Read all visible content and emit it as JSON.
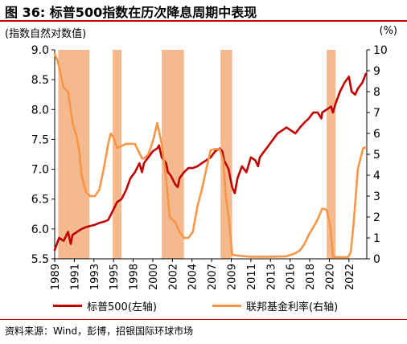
{
  "title": "图 36: 标普500指数在历次降息周期中表现",
  "left_unit": "(指数自然对数值)",
  "right_unit": "(%)",
  "source": "资料来源：Wind，彭博，招银国际环球市场",
  "legend": {
    "sp500": "标普500(左轴)",
    "fed": "联邦基金利率(右轴)"
  },
  "colors": {
    "sp500": "#c00000",
    "fed": "#f79646",
    "shade": "#f4b183",
    "title_rule": "#c00000"
  },
  "chart_data": {
    "type": "line",
    "x_range": [
      1989,
      2024
    ],
    "x_ticks": [
      "1989",
      "1991",
      "1993",
      "1995",
      "1998",
      "2000",
      "2002",
      "2004",
      "2007",
      "2009",
      "2011",
      "2013",
      "2016",
      "2018",
      "2020",
      "2022"
    ],
    "x_tick_values": [
      1989.0,
      1991.2,
      1993.4,
      1995.6,
      1997.8,
      2000.0,
      2002.2,
      2004.4,
      2006.6,
      2008.8,
      2011.0,
      2013.2,
      2015.4,
      2017.6,
      2019.8,
      2022.0
    ],
    "y_left": {
      "label": "(指数自然对数值)",
      "range": [
        5.5,
        9.0
      ],
      "ticks": [
        "5.5",
        "6.0",
        "6.5",
        "7.0",
        "7.5",
        "8.0",
        "8.5",
        "9.0"
      ],
      "tick_values": [
        5.5,
        6.0,
        6.5,
        7.0,
        7.5,
        8.0,
        8.5,
        9.0
      ]
    },
    "y_right": {
      "label": "(%)",
      "range": [
        0,
        10
      ],
      "ticks": [
        "0",
        "1",
        "2",
        "3",
        "4",
        "5",
        "6",
        "7",
        "8",
        "9",
        "10"
      ],
      "tick_values": [
        0,
        1,
        2,
        3,
        4,
        5,
        6,
        7,
        8,
        9,
        10
      ]
    },
    "easing_periods": [
      {
        "start": 1989.4,
        "end": 1992.9
      },
      {
        "start": 1995.5,
        "end": 1996.5
      },
      {
        "start": 2001.0,
        "end": 2003.5
      },
      {
        "start": 2007.6,
        "end": 2008.9
      },
      {
        "start": 2019.5,
        "end": 2020.5
      }
    ],
    "series": [
      {
        "name": "标普500(左轴)",
        "axis": "left",
        "color": "#c00000",
        "x": [
          1989.0,
          1989.5,
          1990.0,
          1990.5,
          1990.8,
          1991.0,
          1991.5,
          1992.0,
          1992.5,
          1993.0,
          1993.5,
          1994.0,
          1994.5,
          1995.0,
          1995.5,
          1996.0,
          1996.5,
          1997.0,
          1997.5,
          1998.0,
          1998.5,
          1998.8,
          1999.0,
          1999.5,
          2000.0,
          2000.5,
          2000.7,
          2001.0,
          2001.5,
          2001.7,
          2002.0,
          2002.5,
          2002.8,
          2003.0,
          2003.5,
          2004.0,
          2004.5,
          2005.0,
          2005.5,
          2006.0,
          2006.5,
          2007.0,
          2007.5,
          2007.8,
          2008.0,
          2008.5,
          2008.9,
          2009.2,
          2009.5,
          2010.0,
          2010.5,
          2011.0,
          2011.5,
          2011.8,
          2012.0,
          2012.5,
          2013.0,
          2013.5,
          2014.0,
          2014.5,
          2015.0,
          2015.5,
          2016.0,
          2016.5,
          2017.0,
          2017.5,
          2018.0,
          2018.5,
          2018.9,
          2019.0,
          2019.5,
          2020.0,
          2020.2,
          2020.5,
          2021.0,
          2021.5,
          2022.0,
          2022.3,
          2022.7,
          2023.0,
          2023.5,
          2023.9
        ],
        "values": [
          5.65,
          5.85,
          5.8,
          5.95,
          5.75,
          5.9,
          5.95,
          6.0,
          6.03,
          6.05,
          6.07,
          6.1,
          6.12,
          6.15,
          6.3,
          6.45,
          6.5,
          6.65,
          6.85,
          6.95,
          7.1,
          6.95,
          7.1,
          7.2,
          7.3,
          7.35,
          7.4,
          7.2,
          7.1,
          6.95,
          6.9,
          6.75,
          6.7,
          6.85,
          6.95,
          7.02,
          7.02,
          7.05,
          7.1,
          7.15,
          7.2,
          7.3,
          7.35,
          7.3,
          7.15,
          7.0,
          6.7,
          6.6,
          6.85,
          7.05,
          6.95,
          7.2,
          7.15,
          7.05,
          7.2,
          7.3,
          7.4,
          7.5,
          7.6,
          7.65,
          7.7,
          7.65,
          7.6,
          7.7,
          7.78,
          7.85,
          7.95,
          7.95,
          7.85,
          7.95,
          8.0,
          8.05,
          7.95,
          8.1,
          8.3,
          8.45,
          8.55,
          8.3,
          8.25,
          8.35,
          8.45,
          8.6
        ]
      },
      {
        "name": "联邦基金利率(右轴)",
        "axis": "right",
        "color": "#f79646",
        "x": [
          1989.0,
          1989.3,
          1989.6,
          1990.0,
          1990.5,
          1991.0,
          1991.5,
          1991.8,
          1992.0,
          1992.5,
          1993.0,
          1993.5,
          1994.0,
          1994.5,
          1995.0,
          1995.3,
          1995.6,
          1996.0,
          1997.0,
          1998.0,
          1998.8,
          1999.0,
          1999.5,
          2000.0,
          2000.5,
          2001.0,
          2001.5,
          2001.9,
          2002.5,
          2003.0,
          2003.5,
          2004.0,
          2004.5,
          2005.0,
          2005.5,
          2006.0,
          2006.5,
          2007.0,
          2007.5,
          2007.9,
          2008.2,
          2008.5,
          2008.9,
          2009.5,
          2011.0,
          2013.0,
          2015.0,
          2015.9,
          2016.5,
          2017.0,
          2017.5,
          2018.0,
          2018.5,
          2019.0,
          2019.5,
          2019.9,
          2020.2,
          2020.5,
          2021.0,
          2021.9,
          2022.2,
          2022.5,
          2022.8,
          2023.0,
          2023.3,
          2023.6,
          2023.9
        ],
        "values": [
          9.8,
          9.5,
          9.0,
          8.2,
          8.0,
          6.5,
          5.8,
          5.0,
          4.0,
          3.2,
          3.0,
          3.0,
          3.3,
          4.3,
          5.5,
          6.0,
          5.8,
          5.3,
          5.5,
          5.5,
          4.8,
          4.8,
          5.0,
          5.6,
          6.5,
          5.5,
          3.8,
          2.0,
          1.75,
          1.3,
          1.0,
          1.0,
          1.3,
          2.5,
          3.3,
          4.3,
          5.2,
          5.25,
          5.25,
          4.7,
          3.0,
          2.0,
          0.2,
          0.15,
          0.1,
          0.1,
          0.12,
          0.25,
          0.4,
          0.7,
          1.15,
          1.5,
          1.9,
          2.4,
          2.35,
          1.6,
          0.1,
          0.09,
          0.08,
          0.08,
          0.3,
          1.6,
          3.2,
          4.3,
          4.8,
          5.3,
          5.33
        ]
      }
    ]
  }
}
